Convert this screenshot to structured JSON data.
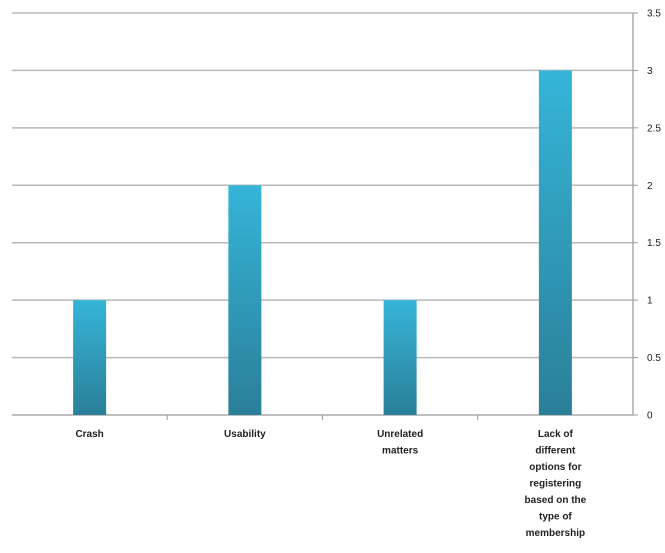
{
  "chart_data": {
    "type": "bar",
    "categories": [
      "Crash",
      "Usability",
      "Unrelated matters",
      "Lack of different options for registering based on the type of membership"
    ],
    "category_label_lines": [
      [
        "Crash"
      ],
      [
        "Usability"
      ],
      [
        "Unrelated",
        "matters"
      ],
      [
        "Lack of",
        "different",
        "options for",
        "registering",
        "based on the",
        "type of",
        "membership"
      ]
    ],
    "values": [
      1,
      2,
      1,
      3
    ],
    "y_ticks": [
      "0",
      "0.5",
      "1",
      "1.5",
      "2",
      "2.5",
      "3",
      "3.5"
    ],
    "ylim": [
      0,
      3.5
    ],
    "y_axis_side": "right",
    "grid": true,
    "legend": "none",
    "bar_color_top": "#35b5d8",
    "bar_color_bottom": "#2a7f98",
    "gridline_color": "#b8b8b8",
    "axis_color": "#9a9a9a"
  }
}
